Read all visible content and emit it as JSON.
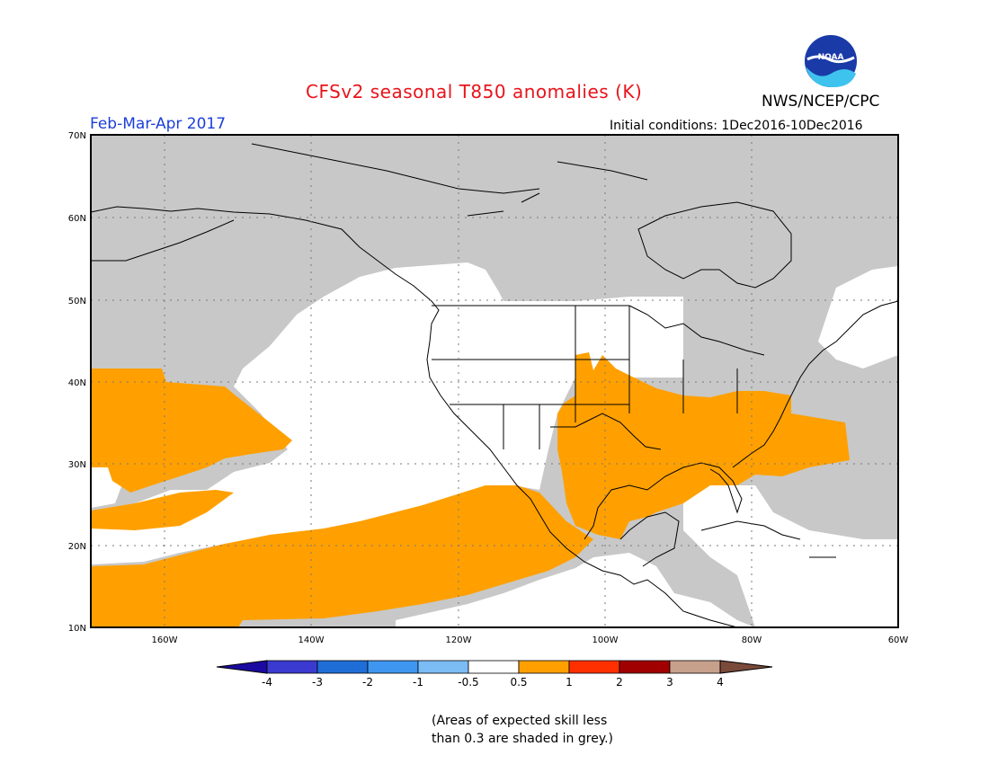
{
  "title": "CFSv2 seasonal T850 anomalies (K)",
  "org_label": "NWS/NCEP/CPC",
  "logo_text": "NOAA",
  "period": "Feb-Mar-Apr 2017",
  "initial_conditions": "Initial conditions: 1Dec2016-10Dec2016",
  "lat_labels": [
    "70N",
    "60N",
    "50N",
    "40N",
    "30N",
    "20N",
    "10N"
  ],
  "lon_labels": [
    "160W",
    "140W",
    "120W",
    "100W",
    "80W",
    "60W"
  ],
  "colorbar": {
    "labels": [
      "-4",
      "-3",
      "-2",
      "-1",
      "-0.5",
      "0.5",
      "1",
      "2",
      "3",
      "4"
    ],
    "colors": [
      "#1b0aa0",
      "#3a3ad0",
      "#1f6ed8",
      "#3e96f0",
      "#7cbcf5",
      "#ffffff",
      "#ffa000",
      "#ff3000",
      "#a00000",
      "#c7a08c",
      "#7a4a3a"
    ]
  },
  "map_colors": {
    "skill_grey": "#c8c8c8",
    "warm_anomaly": "#ffa000",
    "ocean_white": "#ffffff",
    "cold_anomaly": "#7cbcf5"
  },
  "note_lines": [
    "(Areas of expected skill less",
    "than 0.3 are shaded in grey.)"
  ]
}
